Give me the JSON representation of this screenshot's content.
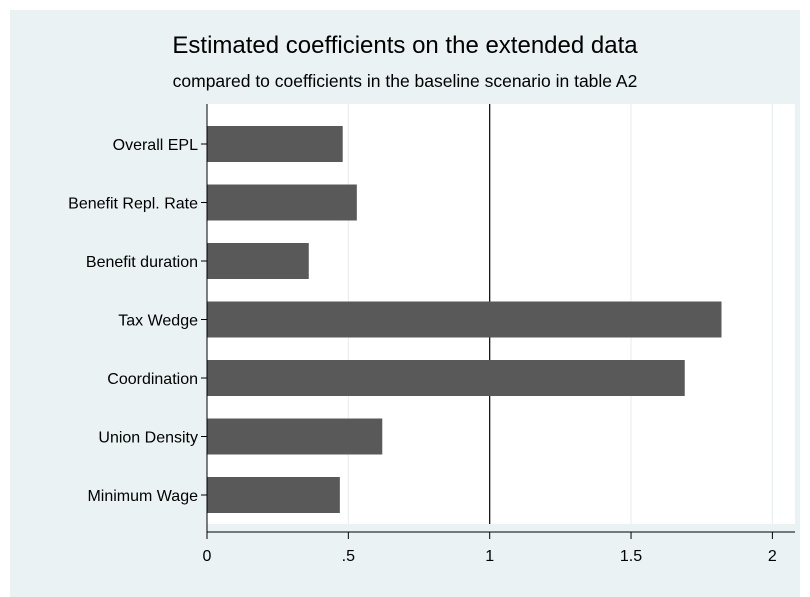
{
  "chart_data": {
    "type": "bar",
    "orientation": "horizontal",
    "title": "Estimated coefficients on the extended data",
    "subtitle": "compared to coefficients in the baseline scenario in table A2",
    "xlabel": "",
    "ylabel": "",
    "categories": [
      "Overall EPL",
      "Benefit Repl. Rate",
      "Benefit duration",
      "Tax Wedge",
      "Coordination",
      "Union Density",
      "Minimum Wage"
    ],
    "values": [
      0.48,
      0.53,
      0.36,
      1.82,
      1.69,
      0.62,
      0.47
    ],
    "xlim": [
      0,
      2.08
    ],
    "xticks": [
      0,
      0.5,
      1,
      1.5,
      2
    ],
    "xtick_labels": [
      "0",
      ".5",
      "1",
      "1.5",
      "2"
    ],
    "reference_line": 1,
    "grid": "vertical",
    "legend": "none",
    "colors": {
      "bar": "#595959",
      "background": "#eaf2f3",
      "plot_background": "#ffffff",
      "grid": "#e9f0f1",
      "reference_line": "#000000"
    }
  }
}
